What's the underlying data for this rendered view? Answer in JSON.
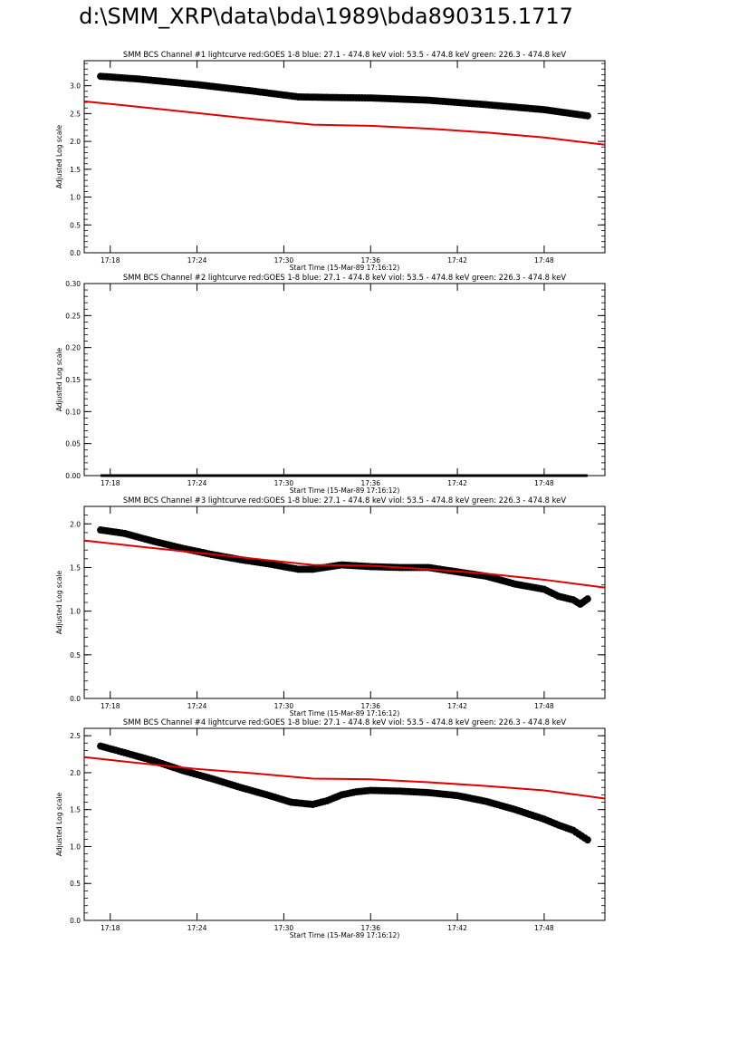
{
  "page_title": "d:\\SMM_XRP\\data\\bda\\1989\\bda890315.1717",
  "colors": {
    "goes": "#e00000",
    "bcs": "#000000",
    "axis": "#000000"
  },
  "chart_data": [
    {
      "type": "scatter",
      "title": "SMM BCS Channel #1 lightcurve  red:GOES 1-8  blue: 27.1 - 474.8 keV  viol: 53.5 - 474.8 keV  green: 226.3 - 474.8 keV",
      "xlabel": "Start Time (15-Mar-89 17:16:12)",
      "ylabel": "Adjusted Log scale",
      "xlim": [
        "17:16:12",
        "17:52:12"
      ],
      "xticks": [
        "17:18",
        "17:24",
        "17:30",
        "17:36",
        "17:42",
        "17:48"
      ],
      "ylim": [
        0.0,
        3.45
      ],
      "yticks": [
        "0.0",
        "0.5",
        "1.0",
        "1.5",
        "2.0",
        "2.5",
        "3.0"
      ],
      "series": [
        {
          "style": "points",
          "color": "#000000",
          "x": [
            "17:17:20",
            "17:20:00",
            "17:24:00",
            "17:28:00",
            "17:31:00",
            "17:33:00",
            "17:36:00",
            "17:40:00",
            "17:44:00",
            "17:48:00",
            "17:51:00"
          ],
          "y": [
            3.17,
            3.12,
            3.02,
            2.9,
            2.8,
            2.79,
            2.78,
            2.74,
            2.66,
            2.57,
            2.46
          ]
        },
        {
          "style": "line",
          "color": "#e00000",
          "x": [
            "17:16:12",
            "17:20:00",
            "17:24:00",
            "17:28:00",
            "17:32:00",
            "17:36:00",
            "17:40:00",
            "17:44:00",
            "17:48:00",
            "17:52:12"
          ],
          "y": [
            2.72,
            2.62,
            2.51,
            2.4,
            2.3,
            2.28,
            2.23,
            2.16,
            2.07,
            1.94
          ]
        }
      ]
    },
    {
      "type": "scatter",
      "title": "SMM BCS Channel #2 lightcurve  red:GOES 1-8  blue: 27.1 - 474.8 keV  viol: 53.5 - 474.8 keV  green: 226.3 - 474.8 keV",
      "xlabel": "Start Time (15-Mar-89 17:16:12)",
      "ylabel": "Adjusted Log scale",
      "xlim": [
        "17:16:12",
        "17:52:12"
      ],
      "xticks": [
        "17:18",
        "17:24",
        "17:30",
        "17:36",
        "17:42",
        "17:48"
      ],
      "ylim": [
        0.0,
        0.3
      ],
      "yticks": [
        "0.00",
        "0.05",
        "0.10",
        "0.15",
        "0.20",
        "0.25",
        "0.30"
      ],
      "series": [
        {
          "style": "line",
          "color": "#000000",
          "x": [
            "17:17:20",
            "17:51:00"
          ],
          "y": [
            0.0,
            0.0
          ]
        }
      ]
    },
    {
      "type": "scatter",
      "title": "SMM BCS Channel #3 lightcurve  red:GOES 1-8  blue: 27.1 - 474.8 keV  viol: 53.5 - 474.8 keV  green: 226.3 - 474.8 keV",
      "xlabel": "Start Time (15-Mar-89 17:16:12)",
      "ylabel": "Adjusted Log scale",
      "xlim": [
        "17:16:12",
        "17:52:12"
      ],
      "xticks": [
        "17:18",
        "17:24",
        "17:30",
        "17:36",
        "17:42",
        "17:48"
      ],
      "ylim": [
        0.0,
        2.2
      ],
      "yticks": [
        "0.0",
        "0.5",
        "1.0",
        "1.5",
        "2.0"
      ],
      "series": [
        {
          "style": "points",
          "color": "#000000",
          "x": [
            "17:17:20",
            "17:19:00",
            "17:21:00",
            "17:23:00",
            "17:25:00",
            "17:27:00",
            "17:29:00",
            "17:30:00",
            "17:31:00",
            "17:32:00",
            "17:34:00",
            "17:36:00",
            "17:38:00",
            "17:40:00",
            "17:42:00",
            "17:44:00",
            "17:46:00",
            "17:48:00",
            "17:49:00",
            "17:50:00",
            "17:50:30",
            "17:51:00"
          ],
          "y": [
            1.93,
            1.89,
            1.8,
            1.72,
            1.65,
            1.59,
            1.54,
            1.51,
            1.48,
            1.48,
            1.53,
            1.51,
            1.5,
            1.5,
            1.45,
            1.4,
            1.31,
            1.25,
            1.17,
            1.13,
            1.08,
            1.14
          ]
        },
        {
          "style": "line",
          "color": "#e00000",
          "x": [
            "17:16:12",
            "17:20:00",
            "17:24:00",
            "17:28:00",
            "17:32:00",
            "17:36:00",
            "17:40:00",
            "17:44:00",
            "17:48:00",
            "17:52:12"
          ],
          "y": [
            1.81,
            1.74,
            1.67,
            1.6,
            1.53,
            1.52,
            1.48,
            1.43,
            1.36,
            1.27
          ]
        }
      ]
    },
    {
      "type": "scatter",
      "title": "SMM BCS Channel #4 lightcurve  red:GOES 1-8  blue: 27.1 - 474.8 keV  viol: 53.5 - 474.8 keV  green: 226.3 - 474.8 keV",
      "xlabel": "Start Time (15-Mar-89 17:16:12)",
      "ylabel": "Adjusted Log scale",
      "xlim": [
        "17:16:12",
        "17:52:12"
      ],
      "xticks": [
        "17:18",
        "17:24",
        "17:30",
        "17:36",
        "17:42",
        "17:48"
      ],
      "ylim": [
        0.0,
        2.6
      ],
      "yticks": [
        "0.0",
        "0.5",
        "1.0",
        "1.5",
        "2.0",
        "2.5"
      ],
      "series": [
        {
          "style": "points",
          "color": "#000000",
          "x": [
            "17:17:20",
            "17:19:00",
            "17:21:00",
            "17:23:00",
            "17:25:00",
            "17:27:00",
            "17:29:00",
            "17:30:30",
            "17:32:00",
            "17:33:00",
            "17:34:00",
            "17:35:00",
            "17:36:00",
            "17:38:00",
            "17:40:00",
            "17:42:00",
            "17:44:00",
            "17:46:00",
            "17:48:00",
            "17:49:00",
            "17:50:00",
            "17:51:00"
          ],
          "y": [
            2.36,
            2.27,
            2.16,
            2.03,
            1.92,
            1.8,
            1.69,
            1.6,
            1.57,
            1.62,
            1.7,
            1.74,
            1.76,
            1.75,
            1.73,
            1.69,
            1.61,
            1.5,
            1.37,
            1.29,
            1.22,
            1.09
          ]
        },
        {
          "style": "line",
          "color": "#e00000",
          "x": [
            "17:16:12",
            "17:20:00",
            "17:24:00",
            "17:28:00",
            "17:32:00",
            "17:36:00",
            "17:40:00",
            "17:44:00",
            "17:48:00",
            "17:52:12"
          ],
          "y": [
            2.21,
            2.13,
            2.05,
            1.99,
            1.92,
            1.91,
            1.87,
            1.82,
            1.76,
            1.65
          ]
        }
      ]
    }
  ]
}
